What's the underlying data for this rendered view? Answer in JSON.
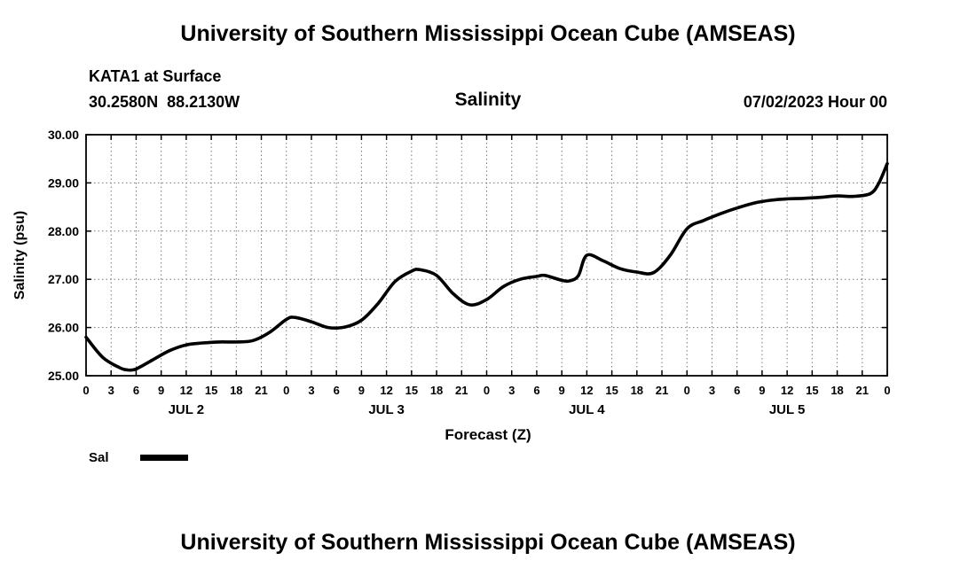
{
  "page": {
    "top_title": "University of Southern Mississippi Ocean Cube (AMSEAS)",
    "bottom_title": "University of Southern Mississippi Ocean Cube (AMSEAS)"
  },
  "header": {
    "station": "KATA1 at Surface",
    "coordinates": "30.2580N  88.2130W",
    "chart_title": "Salinity",
    "datetime": "07/02/2023 Hour 00"
  },
  "chart_data": {
    "type": "line",
    "title": "Salinity",
    "xlabel": "Forecast (Z)",
    "ylabel": "Salinity (psu)",
    "ylim": [
      25.0,
      30.0
    ],
    "xlim_hours": [
      0,
      96
    ],
    "grid": "dotted",
    "y_ticks": [
      25.0,
      26.0,
      27.0,
      28.0,
      29.0,
      30.0
    ],
    "y_tick_labels": [
      "25.00",
      "26.00",
      "27.00",
      "28.00",
      "29.00",
      "30.00"
    ],
    "x_tick_hours": [
      0,
      3,
      6,
      9,
      12,
      15,
      18,
      21,
      24,
      27,
      30,
      33,
      36,
      39,
      42,
      45,
      48,
      51,
      54,
      57,
      60,
      63,
      66,
      69,
      72,
      75,
      78,
      81,
      84,
      87,
      90,
      93,
      96
    ],
    "x_tick_labels": [
      "0",
      "3",
      "6",
      "9",
      "12",
      "15",
      "18",
      "21",
      "0",
      "3",
      "6",
      "9",
      "12",
      "15",
      "18",
      "21",
      "0",
      "3",
      "6",
      "9",
      "12",
      "15",
      "18",
      "21",
      "0",
      "3",
      "6",
      "9",
      "12",
      "15",
      "18",
      "21",
      "0"
    ],
    "day_labels": [
      {
        "text": "JUL 2",
        "center_hour": 12
      },
      {
        "text": "JUL 3",
        "center_hour": 36
      },
      {
        "text": "JUL 4",
        "center_hour": 60
      },
      {
        "text": "JUL 5",
        "center_hour": 84
      }
    ],
    "legend": {
      "label": "Sal",
      "line_color": "#000000"
    },
    "series": [
      {
        "name": "Sal",
        "color": "#000000",
        "points": [
          [
            0,
            25.8
          ],
          [
            2,
            25.38
          ],
          [
            4,
            25.17
          ],
          [
            5,
            25.12
          ],
          [
            6,
            25.14
          ],
          [
            8,
            25.33
          ],
          [
            10,
            25.52
          ],
          [
            12,
            25.64
          ],
          [
            14,
            25.68
          ],
          [
            16,
            25.7
          ],
          [
            18,
            25.7
          ],
          [
            20,
            25.73
          ],
          [
            22,
            25.9
          ],
          [
            24,
            26.17
          ],
          [
            25,
            26.21
          ],
          [
            27,
            26.12
          ],
          [
            29,
            26.0
          ],
          [
            31,
            26.01
          ],
          [
            33,
            26.15
          ],
          [
            35,
            26.5
          ],
          [
            37,
            26.95
          ],
          [
            39,
            27.17
          ],
          [
            40,
            27.2
          ],
          [
            42,
            27.08
          ],
          [
            44,
            26.7
          ],
          [
            46,
            26.47
          ],
          [
            48,
            26.58
          ],
          [
            50,
            26.85
          ],
          [
            52,
            27.0
          ],
          [
            54,
            27.06
          ],
          [
            55,
            27.08
          ],
          [
            57,
            26.98
          ],
          [
            58,
            26.97
          ],
          [
            59,
            27.08
          ],
          [
            60,
            27.5
          ],
          [
            62,
            27.38
          ],
          [
            64,
            27.22
          ],
          [
            66,
            27.15
          ],
          [
            68,
            27.14
          ],
          [
            70,
            27.5
          ],
          [
            72,
            28.05
          ],
          [
            74,
            28.22
          ],
          [
            76,
            28.36
          ],
          [
            78,
            28.48
          ],
          [
            80,
            28.58
          ],
          [
            82,
            28.64
          ],
          [
            84,
            28.67
          ],
          [
            86,
            28.68
          ],
          [
            88,
            28.7
          ],
          [
            90,
            28.73
          ],
          [
            92,
            28.72
          ],
          [
            94,
            28.78
          ],
          [
            95,
            29.0
          ],
          [
            96,
            29.4
          ]
        ]
      }
    ]
  }
}
